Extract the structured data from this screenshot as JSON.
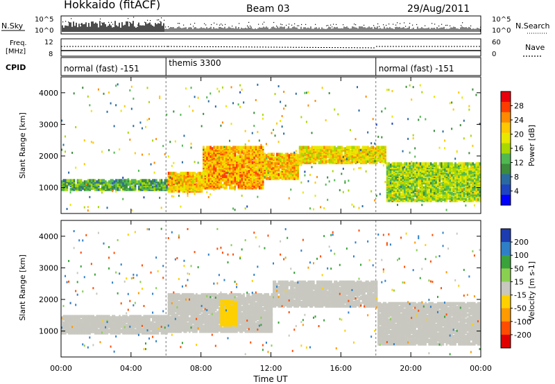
{
  "header": {
    "station": "Hokkaido (fitACF)",
    "beam": "Beam 03",
    "date": "29/Aug/2011"
  },
  "noise_panel": {
    "left_label": "N.Sky",
    "right_label": "N.Search",
    "left_ticks": [
      "10^5",
      "10^0"
    ],
    "right_ticks": [
      "10^5",
      "10^0"
    ]
  },
  "freq_panel": {
    "left_label_line1": "Freq.",
    "left_label_line2": "[MHz]",
    "left_ticks": [
      "12",
      "8"
    ],
    "right_ticks": [
      "60",
      "0"
    ],
    "right_label": "Nave"
  },
  "cpid_panel": {
    "label": "CPID",
    "modes": [
      {
        "name": "normal (fast) -151",
        "start_hour": 0,
        "end_hour": 6
      },
      {
        "name": "themis 3300",
        "start_hour": 6,
        "end_hour": 18
      },
      {
        "name": "normal (fast) -151",
        "start_hour": 18,
        "end_hour": 24
      }
    ]
  },
  "power_panel": {
    "ylabel": "Slant Range [km]",
    "yticks": [
      "4000",
      "3000",
      "2000",
      "1000"
    ],
    "colorbar_label": "Power [dB]",
    "colorbar_ticks": [
      "28",
      "24",
      "20",
      "16",
      "12",
      "8",
      "4"
    ],
    "colors": [
      "#e8000b",
      "#ff3c00",
      "#ff8a00",
      "#ffc800",
      "#e8e800",
      "#a8d800",
      "#50b850",
      "#3c8c3c",
      "#2a6aa0",
      "#1e44c0",
      "#0000ff"
    ]
  },
  "velocity_panel": {
    "ylabel": "Slant Range [km]",
    "yticks": [
      "4000",
      "3000",
      "2000",
      "1000"
    ],
    "colorbar_label": "Velocity [m s-1]",
    "colorbar_ticks": [
      "200",
      "100",
      "50",
      "15",
      "-15",
      "-50",
      "-100",
      "-200"
    ],
    "colors": [
      "#1c3cb0",
      "#2f7fc8",
      "#3aa23a",
      "#8ad050",
      "#c8c8c0",
      "#ffd000",
      "#ff9a00",
      "#ff4d00",
      "#e00000"
    ]
  },
  "xaxis": {
    "label": "Time UT",
    "ticks": [
      "00:00",
      "04:00",
      "08:00",
      "12:00",
      "16:00",
      "20:00",
      "00:00"
    ]
  },
  "chart_data": [
    {
      "type": "heatmap",
      "title": "Hokkaido (fitACF) Beam 03 29/Aug/2011",
      "xlabel": "Time UT",
      "ylabel": "Slant Range [km]",
      "colorbar": "Power [dB]",
      "xlim_hours": [
        0,
        24
      ],
      "ylim_km": [
        180,
        4500
      ],
      "clim_db": [
        0,
        30
      ],
      "bands": [
        {
          "t_start": 0,
          "t_end": 6,
          "range_low": 950,
          "range_high": 1250,
          "power_db": 16
        },
        {
          "t_start": 6,
          "t_end": 8,
          "range_low": 900,
          "range_high": 1500,
          "power_db": 26
        },
        {
          "t_start": 8,
          "t_end": 11.5,
          "range_low": 1000,
          "range_high": 2300,
          "power_db": 27
        },
        {
          "t_start": 11.5,
          "t_end": 13.5,
          "range_low": 1300,
          "range_high": 2100,
          "power_db": 26
        },
        {
          "t_start": 13.5,
          "t_end": 18.5,
          "range_low": 1800,
          "range_high": 2300,
          "power_db": 24
        },
        {
          "t_start": 18.5,
          "t_end": 24,
          "range_low": 600,
          "range_high": 1800,
          "power_db": 20
        }
      ]
    },
    {
      "type": "heatmap",
      "xlabel": "Time UT",
      "ylabel": "Slant Range [km]",
      "colorbar": "Velocity [m s-1]",
      "xlim_hours": [
        0,
        24
      ],
      "ylim_km": [
        180,
        4500
      ],
      "clim_ms": [
        -200,
        200
      ],
      "bands": [
        {
          "t_start": 0,
          "t_end": 6,
          "range_low": 950,
          "range_high": 1500,
          "velocity_ms": 0
        },
        {
          "t_start": 6,
          "t_end": 12,
          "range_low": 1000,
          "range_high": 2200,
          "velocity_ms": 0
        },
        {
          "t_start": 9,
          "t_end": 10,
          "range_low": 1200,
          "range_high": 2000,
          "velocity_ms": -40
        },
        {
          "t_start": 12,
          "t_end": 18,
          "range_low": 1800,
          "range_high": 2600,
          "velocity_ms": 0
        },
        {
          "t_start": 18,
          "t_end": 24,
          "range_low": 600,
          "range_high": 1900,
          "velocity_ms": 0
        }
      ]
    }
  ]
}
